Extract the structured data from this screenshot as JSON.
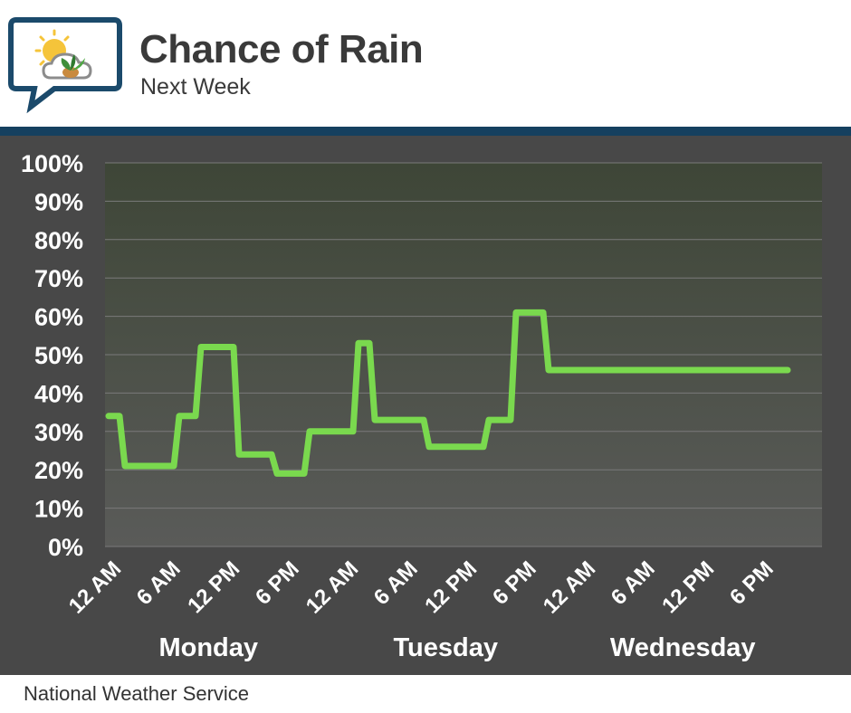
{
  "header": {
    "title": "Chance of Rain",
    "subtitle": "Next Week"
  },
  "footer": {
    "source": "National Weather Service"
  },
  "colors": {
    "line": "#7ad94e",
    "panel": "#484848",
    "rule": "#15405f",
    "grid": "#7a7a7a"
  },
  "logo": {
    "icon": "weather-sun-cloud-plant-icon"
  },
  "chart_data": {
    "type": "line",
    "title": "Chance of Rain",
    "subtitle": "Next Week",
    "ylim": [
      0,
      100
    ],
    "y_ticks": [
      "0%",
      "10%",
      "20%",
      "30%",
      "40%",
      "50%",
      "60%",
      "70%",
      "80%",
      "90%",
      "100%"
    ],
    "x_tick_labels": [
      "12 AM",
      "6 AM",
      "12 PM",
      "6 PM",
      "12 AM",
      "6 AM",
      "12 PM",
      "6 PM",
      "12 AM",
      "6 AM",
      "12 PM",
      "6 PM"
    ],
    "days": [
      {
        "label": "Monday",
        "tick_index": 1.5
      },
      {
        "label": "Tuesday",
        "tick_index": 5.5
      },
      {
        "label": "Wednesday",
        "tick_index": 9.5
      }
    ],
    "grid": true,
    "series": [
      {
        "x_hours": [
          0,
          2,
          3,
          12,
          13,
          16,
          17,
          23,
          24,
          30,
          31,
          36,
          37,
          45,
          46,
          48,
          49,
          58,
          59,
          69,
          70,
          74,
          75,
          80,
          81,
          88,
          89,
          96,
          97,
          104,
          105,
          114,
          115,
          120,
          121,
          125
        ],
        "values": [
          34,
          34,
          21,
          21,
          34,
          34,
          52,
          52,
          24,
          24,
          19,
          19,
          30,
          30,
          53,
          53,
          33,
          33,
          26,
          26,
          33,
          33,
          61,
          61,
          46,
          46,
          46,
          46,
          46,
          46,
          46,
          46,
          46,
          46,
          46,
          46
        ]
      }
    ]
  }
}
